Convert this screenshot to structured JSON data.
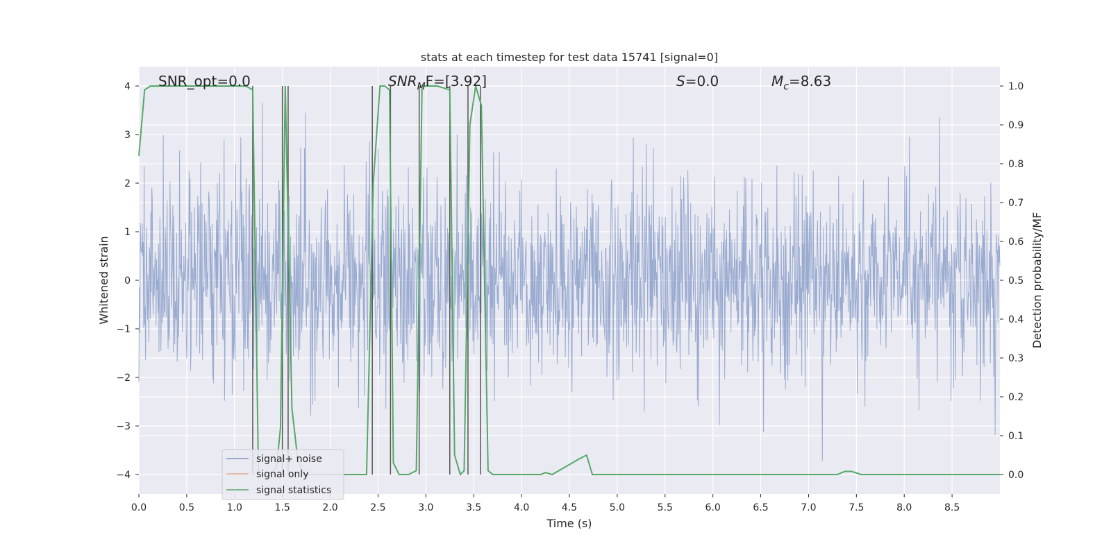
{
  "chart_data": {
    "type": "line",
    "title": "stats at each timestep for test data 15741 [signal=0]",
    "xlabel": "Time (s)",
    "ylabel_left": "Whitened strain",
    "ylabel_right": "Detection probability/MF",
    "xlim": [
      0.0,
      9.0
    ],
    "ylim_left": [
      -4.4,
      4.4
    ],
    "ylim_right": [
      -0.05,
      1.05
    ],
    "xticks": [
      "0.0",
      "0.5",
      "1.0",
      "1.5",
      "2.0",
      "2.5",
      "3.0",
      "3.5",
      "4.0",
      "4.5",
      "5.0",
      "5.5",
      "6.0",
      "6.5",
      "7.0",
      "7.5",
      "8.0",
      "8.5"
    ],
    "yticks_left": [
      "−4",
      "−3",
      "−2",
      "−1",
      "0",
      "1",
      "2",
      "3",
      "4"
    ],
    "yticks_right": [
      "0.0",
      "0.1",
      "0.2",
      "0.3",
      "0.4",
      "0.5",
      "0.6",
      "0.7",
      "0.8",
      "0.9",
      "1.0"
    ],
    "grid": true,
    "legend_position": "bottom-left",
    "colors": {
      "signal_noise": "#7f96c4",
      "signal_only": "#dd8452",
      "statistics": "#55a868",
      "vlines": "#555555",
      "background": "#eaeaf2",
      "grid": "#ffffff"
    },
    "annotations": {
      "snr_opt": "SNR_opt=0.0",
      "snr_mf_main": "SNR",
      "snr_mf_sub": "M",
      "snr_mf_rest": "F=[3.92]",
      "s_main": "S",
      "s_rest": "=0.0",
      "mc_main": "M",
      "mc_sub": "c",
      "mc_rest": "=8.63"
    },
    "series": [
      {
        "name": "signal+ noise",
        "axis": "left",
        "kind": "noise",
        "sigma": 1.0,
        "n_samples": 1800,
        "y_range": [
          -3.9,
          3.9
        ]
      },
      {
        "name": "signal only",
        "axis": "left",
        "values": []
      },
      {
        "name": "signal statistics",
        "axis": "right",
        "x": [
          0.0,
          0.06,
          0.12,
          1.12,
          1.19,
          1.25,
          1.31,
          1.37,
          1.44,
          1.48,
          1.53,
          1.6,
          1.66,
          1.72,
          1.78,
          2.38,
          2.45,
          2.52,
          2.57,
          2.62,
          2.66,
          2.72,
          2.82,
          2.9,
          2.96,
          3.0,
          3.06,
          3.12,
          3.25,
          3.3,
          3.36,
          3.4,
          3.46,
          3.52,
          3.58,
          3.65,
          3.7,
          3.76,
          4.2,
          4.25,
          4.32,
          4.6,
          4.68,
          4.74,
          7.3,
          7.38,
          7.45,
          7.55,
          9.0
        ],
        "values": [
          0.82,
          0.99,
          1.0,
          1.0,
          0.99,
          0.0,
          0.0,
          0.0,
          0.02,
          0.12,
          1.0,
          0.17,
          0.04,
          0.0,
          0.0,
          0.0,
          0.75,
          1.0,
          1.0,
          0.99,
          0.03,
          0.0,
          0.0,
          0.01,
          1.0,
          1.0,
          1.0,
          1.0,
          0.99,
          0.05,
          0.0,
          0.01,
          0.9,
          1.0,
          0.95,
          0.01,
          0.0,
          0.0,
          0.0,
          0.005,
          0.0,
          0.04,
          0.05,
          0.0,
          0.0,
          0.008,
          0.008,
          0.0,
          0.0
        ]
      }
    ],
    "vlines_x": [
      1.19,
      1.5,
      1.56,
      2.44,
      2.63,
      2.93,
      3.25,
      3.44,
      3.57
    ]
  }
}
